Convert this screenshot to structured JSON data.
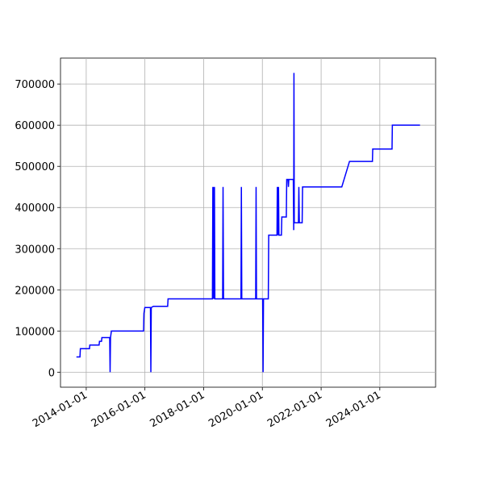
{
  "chart_data": {
    "type": "line",
    "color": "#0000ff",
    "grid": true,
    "x": [
      "2013-09-01",
      "2013-10-15",
      "2013-10-20",
      "2014-02-10",
      "2014-02-15",
      "2014-06-10",
      "2014-06-15",
      "2014-07-10",
      "2014-07-15",
      "2014-10-20",
      "2014-10-25",
      "2014-10-30",
      "2014-11-10",
      "2015-12-15",
      "2015-12-20",
      "2015-12-31",
      "2016-03-10",
      "2016-03-15",
      "2016-03-20",
      "2016-04-15",
      "2016-10-10",
      "2016-10-15",
      "2018-04-20",
      "2018-04-25",
      "2018-04-30",
      "2018-05-05",
      "2018-05-10",
      "2018-05-15",
      "2018-05-20",
      "2018-08-25",
      "2018-08-30",
      "2018-09-05",
      "2019-04-10",
      "2019-04-15",
      "2019-04-20",
      "2019-10-10",
      "2019-10-15",
      "2019-10-20",
      "2020-01-05",
      "2020-01-10",
      "2020-01-15",
      "2020-03-15",
      "2020-03-20",
      "2020-07-01",
      "2020-07-05",
      "2020-07-10",
      "2020-07-20",
      "2020-07-25",
      "2020-08-25",
      "2020-08-30",
      "2020-10-25",
      "2020-10-30",
      "2020-11-15",
      "2020-11-20",
      "2020-11-25",
      "2021-01-20",
      "2021-01-25",
      "2021-01-28",
      "2021-02-01",
      "2021-03-25",
      "2021-03-30",
      "2021-04-05",
      "2021-05-10",
      "2021-05-15",
      "2022-09-15",
      "2022-12-20",
      "2023-10-01",
      "2023-10-05",
      "2024-06-01",
      "2024-06-05",
      "2025-05-15"
    ],
    "values": [
      37000,
      37000,
      57000,
      57000,
      66000,
      66000,
      75000,
      75000,
      84000,
      84000,
      0,
      84000,
      100000,
      100000,
      143000,
      157000,
      157000,
      0,
      157000,
      160000,
      160000,
      178000,
      178000,
      450000,
      178000,
      450000,
      178000,
      450000,
      178000,
      178000,
      450000,
      178000,
      178000,
      450000,
      178000,
      178000,
      450000,
      178000,
      178000,
      0,
      178000,
      178000,
      333000,
      333000,
      450000,
      333000,
      450000,
      333000,
      333000,
      377000,
      377000,
      468000,
      468000,
      450000,
      468000,
      468000,
      345000,
      727000,
      363000,
      363000,
      450000,
      363000,
      363000,
      450000,
      450000,
      512000,
      512000,
      542000,
      542000,
      600000,
      600000
    ],
    "xlim": [
      "2013-02-15",
      "2025-11-25"
    ],
    "xticks": [
      "2014-01-01",
      "2016-01-01",
      "2018-01-01",
      "2020-01-01",
      "2022-01-01",
      "2024-01-01"
    ],
    "ylim": [
      -36500,
      763000
    ],
    "yticks": [
      0,
      100000,
      200000,
      300000,
      400000,
      500000,
      600000,
      700000
    ]
  }
}
